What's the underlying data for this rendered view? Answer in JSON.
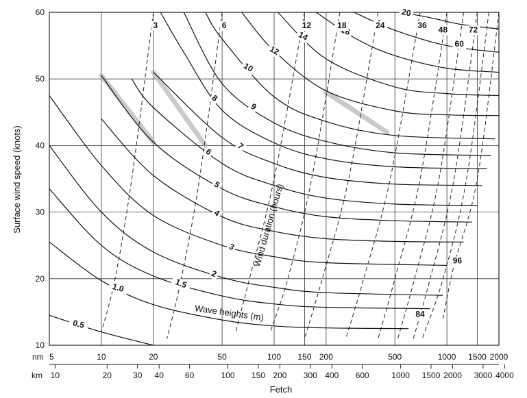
{
  "chart_data": {
    "type": "line",
    "title": "",
    "xlabel": "Fetch",
    "ylabel": "Surface wind speed (knots)",
    "x_scale": "log",
    "x_unit_primary": "nm",
    "x_unit_secondary": "km",
    "xlim_nm": [
      5,
      2000
    ],
    "ylim": [
      10,
      60
    ],
    "grid": true,
    "y_ticks": [
      10,
      20,
      30,
      40,
      50,
      60
    ],
    "x_ticks_nm": [
      "5",
      "10",
      "20",
      "50",
      "100",
      "150",
      "200",
      "500",
      "1000",
      "1500",
      "2000"
    ],
    "x_ticks_km": [
      "10",
      "20",
      "30",
      "40",
      "60",
      "100",
      "150",
      "200",
      "300",
      "400",
      "600",
      "1000",
      "1500",
      "2000",
      "3000",
      "4000"
    ],
    "wave_heights_title": "Wave heights (m)",
    "wind_duration_title": "Wind duration (hours)",
    "wave_height_curves": [
      {
        "name": "0.5",
        "saturation_wind_kt": 10,
        "points": [
          [
            5,
            14.5
          ],
          [
            10,
            12.0
          ],
          [
            20,
            10.0
          ]
        ]
      },
      {
        "name": "1.0",
        "saturation_wind_kt": 12.5,
        "points": [
          [
            5,
            25.5
          ],
          [
            10,
            19.7
          ],
          [
            20,
            16.1
          ],
          [
            50,
            13.8
          ],
          [
            100,
            12.9
          ],
          [
            200,
            12.6
          ],
          [
            600,
            12.5
          ]
        ]
      },
      {
        "name": "1.5",
        "saturation_wind_kt": 15.5,
        "points": [
          [
            5,
            33.5
          ],
          [
            10,
            25.0
          ],
          [
            20,
            20.4
          ],
          [
            50,
            17.4
          ],
          [
            100,
            16.2
          ],
          [
            200,
            15.7
          ],
          [
            800,
            15.5
          ]
        ]
      },
      {
        "name": "2",
        "saturation_wind_kt": 17.5,
        "points": [
          [
            5,
            40.0
          ],
          [
            10,
            30.0
          ],
          [
            20,
            24.0
          ],
          [
            50,
            20.2
          ],
          [
            100,
            18.7
          ],
          [
            200,
            17.9
          ],
          [
            950,
            17.5
          ]
        ]
      },
      {
        "name": "3",
        "saturation_wind_kt": 22,
        "points": [
          [
            5,
            47.5
          ],
          [
            10,
            37.0
          ],
          [
            20,
            29.5
          ],
          [
            50,
            25.0
          ],
          [
            100,
            23.3
          ],
          [
            200,
            22.4
          ],
          [
            1000,
            22.0
          ]
        ]
      },
      {
        "name": "4",
        "saturation_wind_kt": 25.5,
        "points": [
          [
            10,
            44.0
          ],
          [
            20,
            35.5
          ],
          [
            50,
            29.3
          ],
          [
            100,
            27.1
          ],
          [
            200,
            26.0
          ],
          [
            500,
            25.6
          ],
          [
            1250,
            25.5
          ]
        ]
      },
      {
        "name": "5",
        "saturation_wind_kt": 28.5,
        "points": [
          [
            10,
            50.5
          ],
          [
            20,
            40.5
          ],
          [
            50,
            33.5
          ],
          [
            100,
            30.8
          ],
          [
            200,
            29.3
          ],
          [
            500,
            28.7
          ],
          [
            1400,
            28.5
          ]
        ]
      },
      {
        "name": "6",
        "saturation_wind_kt": 31,
        "points": [
          [
            15,
            50.0
          ],
          [
            20,
            45.7
          ],
          [
            50,
            37.3
          ],
          [
            100,
            34.0
          ],
          [
            200,
            32.1
          ],
          [
            500,
            31.2
          ],
          [
            1500,
            31.0
          ]
        ]
      },
      {
        "name": "7",
        "saturation_wind_kt": 34,
        "points": [
          [
            20,
            51.0
          ],
          [
            50,
            41.2
          ],
          [
            100,
            37.3
          ],
          [
            200,
            35.2
          ],
          [
            500,
            34.2
          ],
          [
            1600,
            34.0
          ]
        ]
      },
      {
        "name": "8",
        "saturation_wind_kt": 36.5,
        "points": [
          [
            22,
            60.0
          ],
          [
            30,
            54.0
          ],
          [
            50,
            45.3
          ],
          [
            100,
            40.4
          ],
          [
            200,
            38.0
          ],
          [
            500,
            36.8
          ],
          [
            1700,
            36.5
          ]
        ]
      },
      {
        "name": "9",
        "saturation_wind_kt": 38.5,
        "points": [
          [
            30,
            60.0
          ],
          [
            50,
            49.3
          ],
          [
            100,
            43.4
          ],
          [
            200,
            40.6
          ],
          [
            500,
            38.9
          ],
          [
            1800,
            38.5
          ]
        ]
      },
      {
        "name": "10",
        "saturation_wind_kt": 41,
        "points": [
          [
            40,
            60.0
          ],
          [
            50,
            56.0
          ],
          [
            100,
            47.3
          ],
          [
            200,
            43.6
          ],
          [
            500,
            41.5
          ],
          [
            1900,
            41.0
          ]
        ]
      },
      {
        "name": "12",
        "saturation_wind_kt": 44.5,
        "points": [
          [
            65,
            60.0
          ],
          [
            100,
            54.2
          ],
          [
            200,
            48.2
          ],
          [
            500,
            45.2
          ],
          [
            1000,
            44.6
          ],
          [
            2000,
            44.5
          ]
        ]
      },
      {
        "name": "14",
        "saturation_wind_kt": 47.5,
        "points": [
          [
            105,
            60.0
          ],
          [
            200,
            53.0
          ],
          [
            500,
            48.8
          ],
          [
            1000,
            47.8
          ],
          [
            2000,
            47.5
          ]
        ]
      },
      {
        "name": "16",
        "saturation_wind_kt": 51,
        "points": [
          [
            175,
            60.0
          ],
          [
            300,
            56.0
          ],
          [
            500,
            53.5
          ],
          [
            1000,
            51.6
          ],
          [
            2000,
            51.0
          ]
        ]
      },
      {
        "name": "18",
        "saturation_wind_kt": 54,
        "points": [
          [
            290,
            60.0
          ],
          [
            500,
            57.3
          ],
          [
            1000,
            55.0
          ],
          [
            2000,
            54.0
          ]
        ]
      },
      {
        "name": "20",
        "saturation_wind_kt": 57.5,
        "points": [
          [
            550,
            60.0
          ],
          [
            800,
            59.2
          ],
          [
            1200,
            58.2
          ],
          [
            2000,
            57.5
          ]
        ]
      }
    ],
    "wind_duration_curves": [
      {
        "name": "3",
        "points": [
          [
            20,
            60.0
          ],
          [
            15,
            35.0
          ],
          [
            12,
            20.0
          ],
          [
            10,
            12.0
          ]
        ]
      },
      {
        "name": "6",
        "points": [
          [
            50,
            60.0
          ],
          [
            37,
            35.0
          ],
          [
            29,
            20.0
          ],
          [
            24,
            11.0
          ]
        ]
      },
      {
        "name": "12",
        "points": [
          [
            150,
            60.0
          ],
          [
            100,
            35.0
          ],
          [
            72,
            20.0
          ],
          [
            60,
            12.0
          ]
        ]
      },
      {
        "name": "18",
        "points": [
          [
            240,
            60.0
          ],
          [
            165,
            35.0
          ],
          [
            120,
            20.0
          ],
          [
            95,
            12.0
          ]
        ]
      },
      {
        "name": "24",
        "points": [
          [
            400,
            60.0
          ],
          [
            270,
            35.0
          ],
          [
            190,
            20.0
          ],
          [
            150,
            11.0
          ]
        ]
      },
      {
        "name": "36",
        "points": [
          [
            700,
            60.0
          ],
          [
            470,
            35.0
          ],
          [
            330,
            20.0
          ],
          [
            260,
            11.0
          ]
        ]
      },
      {
        "name": "48",
        "points": [
          [
            1000,
            60.0
          ],
          [
            700,
            35.0
          ],
          [
            500,
            20.0
          ],
          [
            400,
            11.0
          ]
        ]
      },
      {
        "name": "60",
        "points": [
          [
            1250,
            60.0
          ],
          [
            900,
            35.0
          ],
          [
            650,
            20.0
          ],
          [
            520,
            11.0
          ]
        ]
      },
      {
        "name": "72",
        "points": [
          [
            1500,
            60.0
          ],
          [
            1100,
            35.0
          ],
          [
            800,
            20.0
          ],
          [
            640,
            11.0
          ]
        ]
      },
      {
        "name": "84",
        "points": [
          [
            1750,
            60.0
          ],
          [
            1300,
            35.0
          ],
          [
            950,
            20.0
          ],
          [
            720,
            11.0
          ]
        ]
      },
      {
        "name": "96",
        "points": [
          [
            2000,
            60.0
          ],
          [
            1500,
            35.0
          ],
          [
            1100,
            22.0
          ],
          [
            950,
            14.0
          ]
        ]
      }
    ],
    "shaded_band": [
      [
        10,
        50.5
      ],
      [
        20,
        40.5
      ]
    ],
    "shaded_band_2": [
      [
        20,
        51.0
      ],
      [
        40,
        40.0
      ]
    ],
    "shaded_band_3": [
      [
        200,
        48.0
      ],
      [
        450,
        42.0
      ]
    ]
  }
}
